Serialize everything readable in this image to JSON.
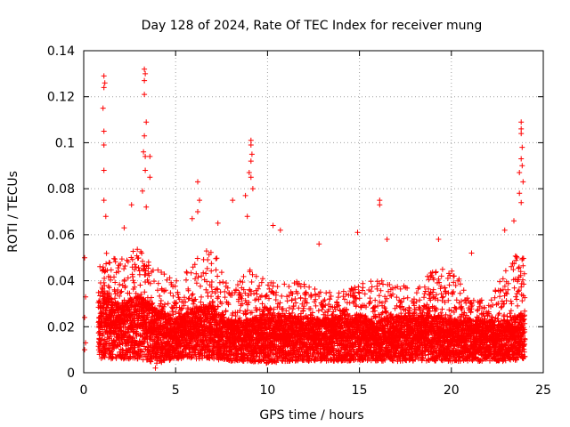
{
  "chart_data": {
    "type": "scatter",
    "title": "Day 128 of 2024, Rate Of TEC Index for receiver mung",
    "xlabel": "GPS time / hours",
    "ylabel": "ROTI / TECUs",
    "xlim": [
      0,
      25
    ],
    "ylim": [
      0,
      0.14
    ],
    "xticks": [
      0,
      5,
      10,
      15,
      20,
      25
    ],
    "xtick_labels": [
      "0",
      "5",
      "10",
      "15",
      "20",
      "25"
    ],
    "yticks": [
      0,
      0.02,
      0.04,
      0.06,
      0.08,
      0.1,
      0.12,
      0.14
    ],
    "ytick_labels": [
      "0",
      "0.02",
      "0.04",
      "0.06",
      "0.08",
      "0.1",
      "0.12",
      "0.14"
    ],
    "grid": true,
    "marker": "+",
    "color": "#ff0000",
    "series": [
      {
        "name": "ROTI",
        "notable_points": [
          {
            "x": 1.1,
            "y": 0.129
          },
          {
            "x": 1.15,
            "y": 0.126
          },
          {
            "x": 1.1,
            "y": 0.124
          },
          {
            "x": 1.05,
            "y": 0.115
          },
          {
            "x": 1.1,
            "y": 0.105
          },
          {
            "x": 1.1,
            "y": 0.099
          },
          {
            "x": 1.1,
            "y": 0.088
          },
          {
            "x": 1.1,
            "y": 0.075
          },
          {
            "x": 1.2,
            "y": 0.068
          },
          {
            "x": 3.3,
            "y": 0.132
          },
          {
            "x": 3.35,
            "y": 0.13
          },
          {
            "x": 3.3,
            "y": 0.127
          },
          {
            "x": 3.3,
            "y": 0.121
          },
          {
            "x": 3.4,
            "y": 0.109
          },
          {
            "x": 3.3,
            "y": 0.103
          },
          {
            "x": 3.25,
            "y": 0.096
          },
          {
            "x": 3.35,
            "y": 0.094
          },
          {
            "x": 3.6,
            "y": 0.094
          },
          {
            "x": 3.35,
            "y": 0.088
          },
          {
            "x": 3.2,
            "y": 0.079
          },
          {
            "x": 3.4,
            "y": 0.072
          },
          {
            "x": 3.6,
            "y": 0.085
          },
          {
            "x": 2.6,
            "y": 0.073
          },
          {
            "x": 2.2,
            "y": 0.063
          },
          {
            "x": 6.2,
            "y": 0.083
          },
          {
            "x": 6.3,
            "y": 0.075
          },
          {
            "x": 6.2,
            "y": 0.07
          },
          {
            "x": 5.9,
            "y": 0.067
          },
          {
            "x": 7.3,
            "y": 0.065
          },
          {
            "x": 8.1,
            "y": 0.075
          },
          {
            "x": 9.1,
            "y": 0.101
          },
          {
            "x": 9.1,
            "y": 0.099
          },
          {
            "x": 9.15,
            "y": 0.095
          },
          {
            "x": 9.1,
            "y": 0.092
          },
          {
            "x": 9.0,
            "y": 0.087
          },
          {
            "x": 9.1,
            "y": 0.085
          },
          {
            "x": 8.8,
            "y": 0.077
          },
          {
            "x": 9.2,
            "y": 0.08
          },
          {
            "x": 8.9,
            "y": 0.068
          },
          {
            "x": 10.3,
            "y": 0.064
          },
          {
            "x": 10.7,
            "y": 0.062
          },
          {
            "x": 12.8,
            "y": 0.056
          },
          {
            "x": 14.9,
            "y": 0.061
          },
          {
            "x": 16.1,
            "y": 0.075
          },
          {
            "x": 16.1,
            "y": 0.073
          },
          {
            "x": 16.5,
            "y": 0.058
          },
          {
            "x": 19.3,
            "y": 0.058
          },
          {
            "x": 21.1,
            "y": 0.052
          },
          {
            "x": 22.9,
            "y": 0.062
          },
          {
            "x": 23.4,
            "y": 0.066
          },
          {
            "x": 23.8,
            "y": 0.109
          },
          {
            "x": 23.8,
            "y": 0.106
          },
          {
            "x": 23.8,
            "y": 0.104
          },
          {
            "x": 23.85,
            "y": 0.098
          },
          {
            "x": 23.8,
            "y": 0.093
          },
          {
            "x": 23.85,
            "y": 0.09
          },
          {
            "x": 23.7,
            "y": 0.087
          },
          {
            "x": 23.9,
            "y": 0.083
          },
          {
            "x": 23.7,
            "y": 0.078
          },
          {
            "x": 23.8,
            "y": 0.074
          },
          {
            "x": 0.05,
            "y": 0.05
          },
          {
            "x": 0.1,
            "y": 0.033
          },
          {
            "x": 0.05,
            "y": 0.024
          },
          {
            "x": 0.1,
            "y": 0.013
          },
          {
            "x": 0.05,
            "y": 0.01
          },
          {
            "x": 3.9,
            "y": 0.002
          },
          {
            "x": 24.0,
            "y": 0.007
          }
        ],
        "bulk_profile": {
          "description": "dense band of points across 0.7-24 h",
          "hours": [
            0.8,
            1,
            2,
            3,
            4,
            5,
            6,
            7,
            8,
            9,
            10,
            11,
            12,
            13,
            14,
            15,
            16,
            17,
            18,
            19,
            20,
            21,
            22,
            23,
            24
          ],
          "median": [
            0.015,
            0.022,
            0.018,
            0.02,
            0.016,
            0.015,
            0.017,
            0.018,
            0.014,
            0.014,
            0.015,
            0.015,
            0.015,
            0.014,
            0.015,
            0.015,
            0.014,
            0.015,
            0.015,
            0.015,
            0.014,
            0.014,
            0.014,
            0.014,
            0.016
          ],
          "upper": [
            0.04,
            0.055,
            0.05,
            0.055,
            0.045,
            0.04,
            0.05,
            0.055,
            0.035,
            0.045,
            0.04,
            0.04,
            0.04,
            0.035,
            0.035,
            0.04,
            0.04,
            0.04,
            0.035,
            0.045,
            0.045,
            0.035,
            0.03,
            0.05,
            0.055
          ],
          "lower": [
            0.006,
            0.006,
            0.006,
            0.006,
            0.004,
            0.006,
            0.006,
            0.006,
            0.005,
            0.005,
            0.004,
            0.005,
            0.005,
            0.005,
            0.005,
            0.005,
            0.005,
            0.005,
            0.005,
            0.005,
            0.005,
            0.005,
            0.005,
            0.005,
            0.006
          ]
        }
      }
    ]
  }
}
